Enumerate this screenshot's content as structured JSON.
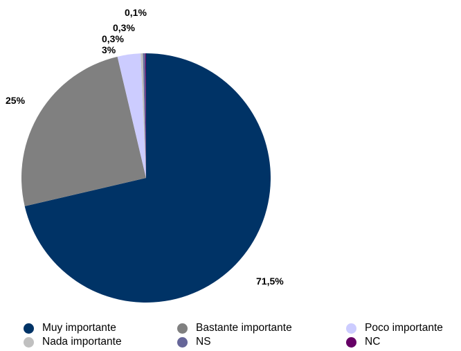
{
  "chart_data": {
    "type": "pie",
    "title": "",
    "series": [
      {
        "values": [
          71.5,
          25,
          3,
          0.3,
          0.3,
          0.1
        ]
      }
    ],
    "categories": [
      "Muy importante",
      "Bastante importante",
      "Poco importante",
      "Nada importante",
      "NS",
      "NC"
    ],
    "data_labels": [
      "71,5%",
      "25%",
      "3%",
      "0,3%",
      "0,3%",
      "0,1%"
    ],
    "colors": [
      "#003366",
      "#808080",
      "#ccccff",
      "#c0c0c0",
      "#666699",
      "#660066"
    ],
    "start_angle": "12 o'clock",
    "direction": "clockwise",
    "legend": "bottom"
  }
}
